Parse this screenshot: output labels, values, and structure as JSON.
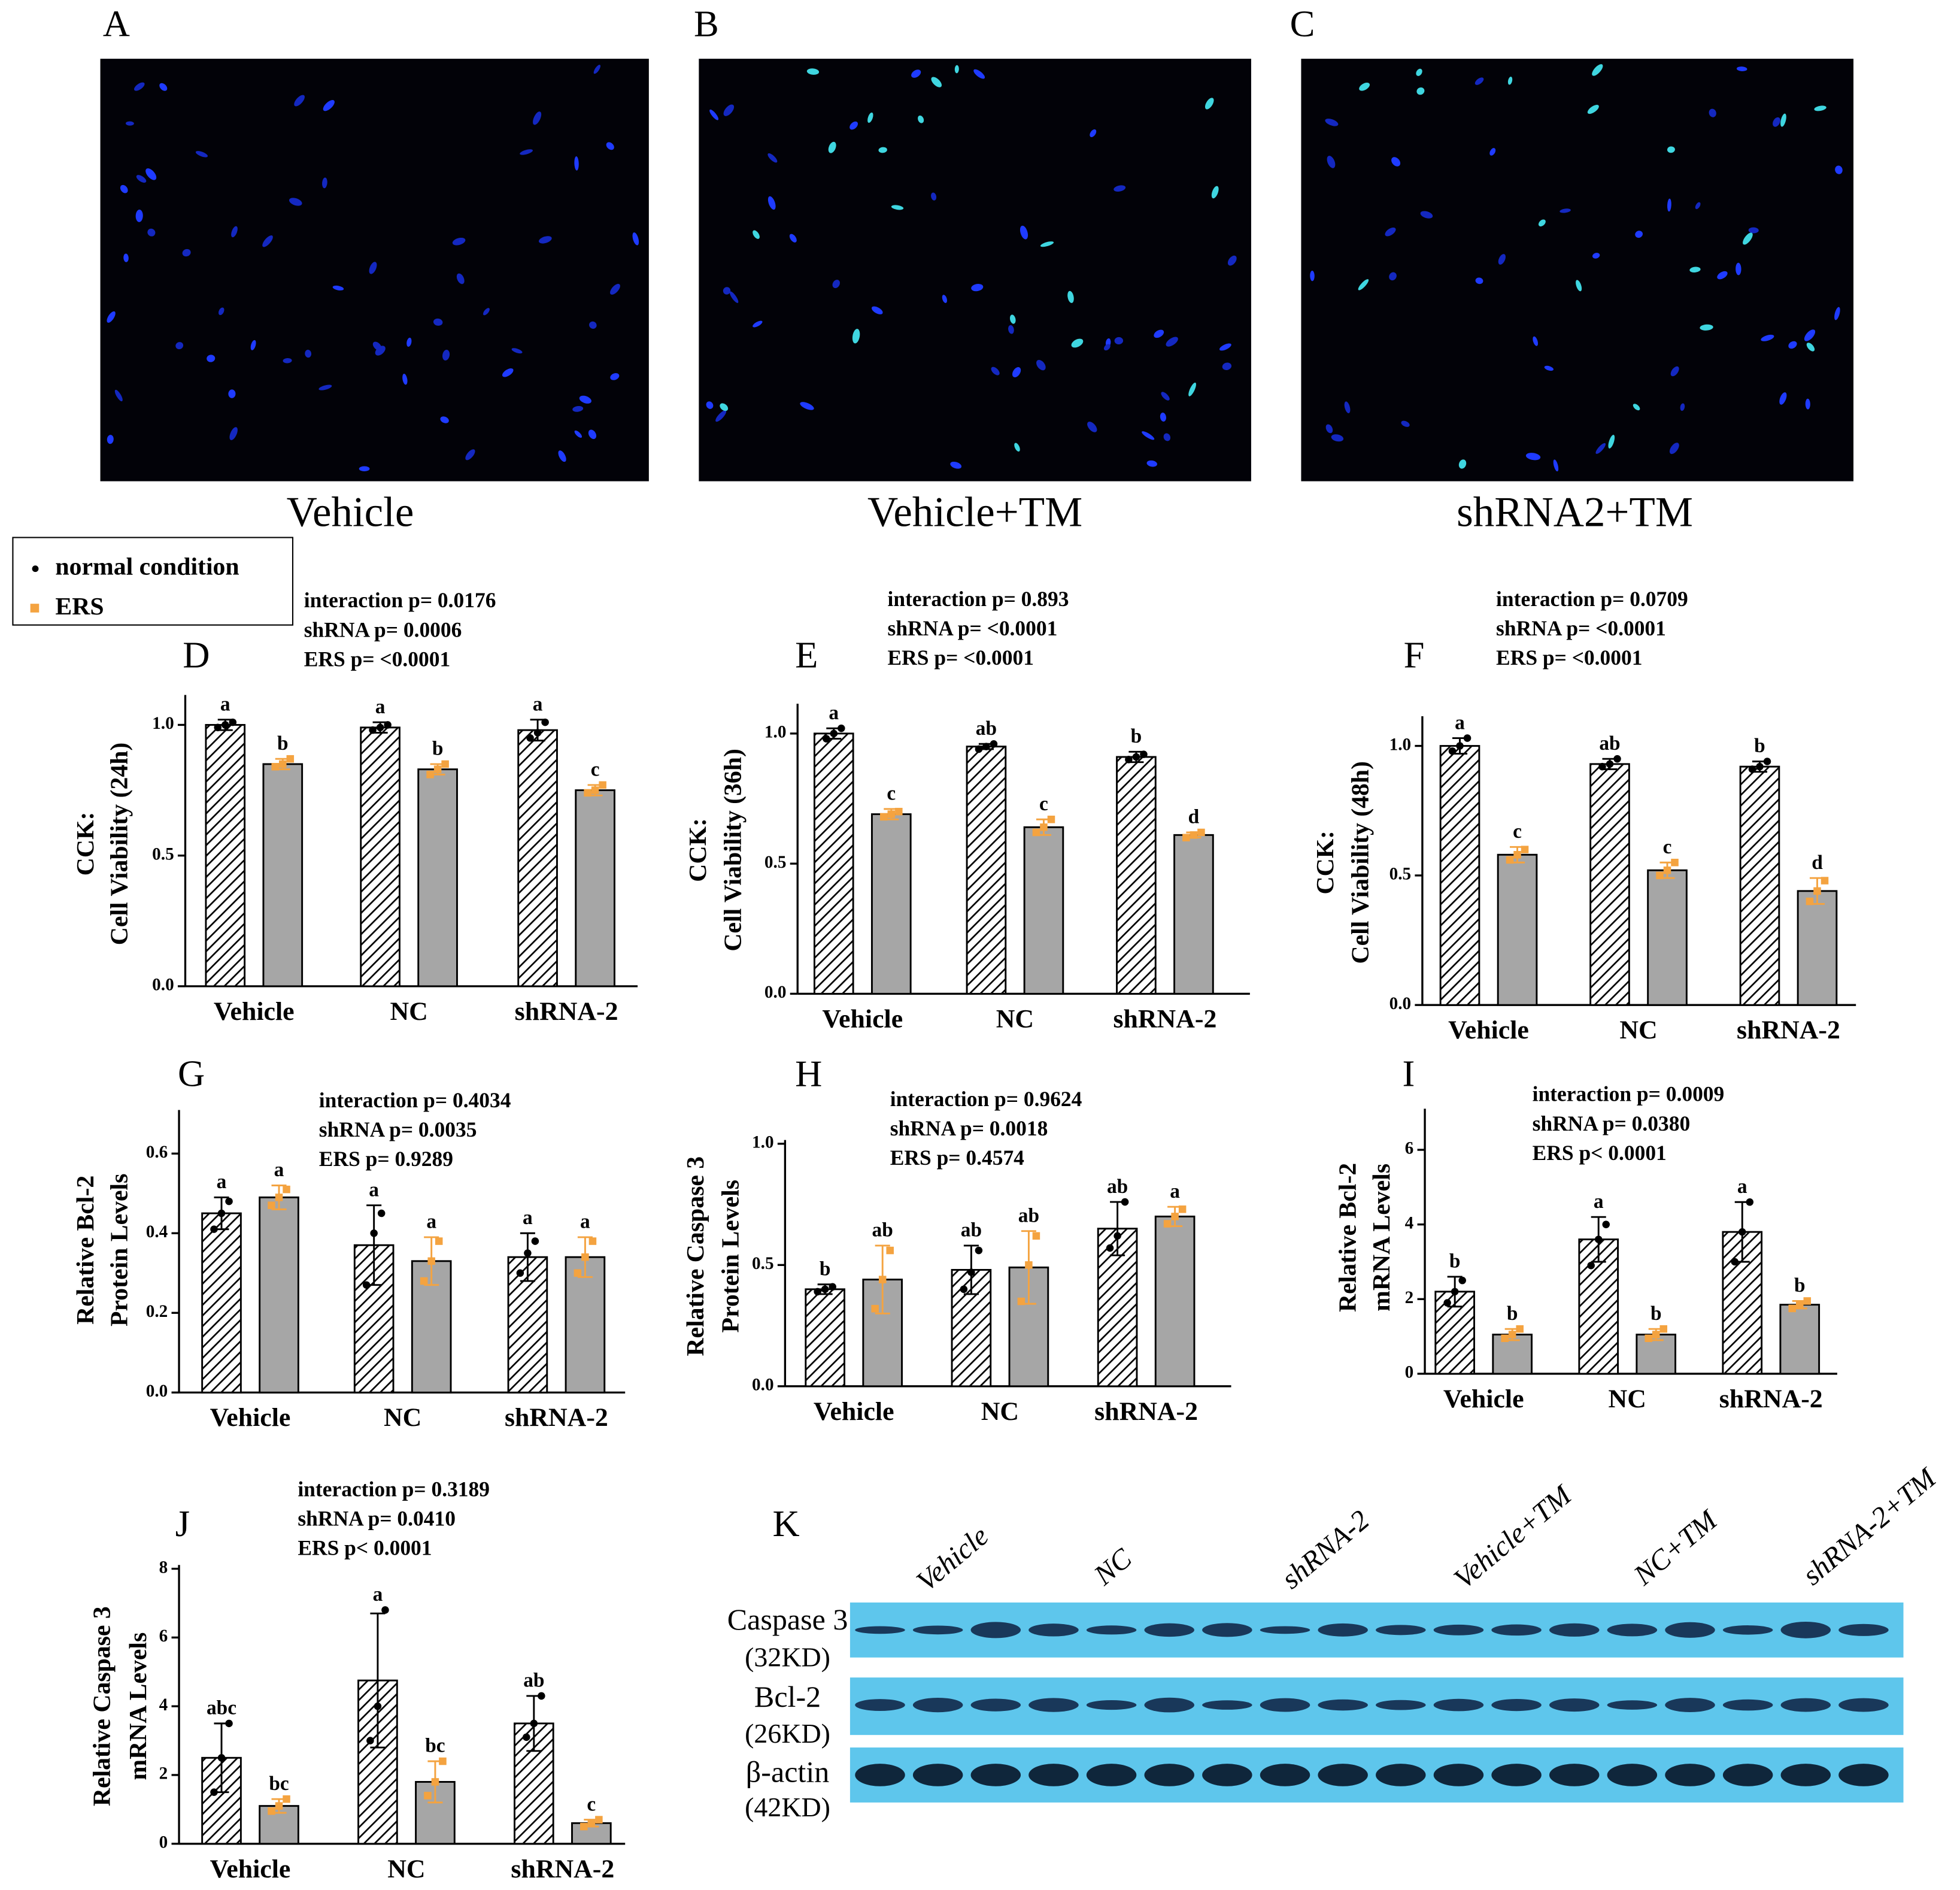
{
  "images": [
    {
      "letter": "A",
      "caption": "Vehicle"
    },
    {
      "letter": "B",
      "caption": "Vehicle+TM"
    },
    {
      "letter": "C",
      "caption": "shRNA2+TM"
    }
  ],
  "legend": {
    "items": [
      {
        "name": "normal condition",
        "color": "#000000"
      },
      {
        "name": "ERS",
        "color": "#f4a340"
      }
    ]
  },
  "chart_data": [
    {
      "type": "bar",
      "letter": "D",
      "annotations": [
        "interaction p= 0.0176",
        "shRNA p= 0.0006",
        "ERS p= <0.0001"
      ],
      "ylabel": [
        "CCK:",
        "Cell Viability (24h)"
      ],
      "categories": [
        "Vehicle",
        "NC",
        "shRNA-2"
      ],
      "ylim": [
        0,
        1.1
      ],
      "yticks": [
        {
          "value": 0,
          "label": "0.0"
        },
        {
          "value": 0.5,
          "label": "0.5"
        },
        {
          "value": 1,
          "label": "1.0"
        }
      ],
      "series": [
        {
          "values": [
            1.0,
            0.99,
            0.98
          ],
          "errors": [
            0.02,
            0.02,
            0.04
          ],
          "points": [
            [
              0.99,
              1.0,
              1.01
            ],
            [
              0.98,
              0.99,
              1.0
            ],
            [
              0.95,
              0.97,
              1.01
            ]
          ],
          "letters": [
            "a",
            "a",
            "a"
          ]
        },
        {
          "values": [
            0.85,
            0.83,
            0.75
          ],
          "errors": [
            0.02,
            0.02,
            0.02
          ],
          "points": [
            [
              0.84,
              0.85,
              0.87
            ],
            [
              0.81,
              0.83,
              0.85
            ],
            [
              0.74,
              0.75,
              0.77
            ]
          ],
          "letters": [
            "b",
            "b",
            "c"
          ]
        }
      ]
    },
    {
      "type": "bar",
      "letter": "E",
      "annotations": [
        "interaction p= 0.893",
        "shRNA p= <0.0001",
        "ERS p= <0.0001"
      ],
      "ylabel": [
        "CCK:",
        "Cell Viability (36h)"
      ],
      "categories": [
        "Vehicle",
        "NC",
        "shRNA-2"
      ],
      "ylim": [
        0,
        1.1
      ],
      "yticks": [
        {
          "value": 0,
          "label": "0.0"
        },
        {
          "value": 0.5,
          "label": "0.5"
        },
        {
          "value": 1,
          "label": "1.0"
        }
      ],
      "series": [
        {
          "values": [
            1.0,
            0.95,
            0.91
          ],
          "errors": [
            0.02,
            0.01,
            0.02
          ],
          "points": [
            [
              0.98,
              1.0,
              1.02
            ],
            [
              0.94,
              0.95,
              0.96
            ],
            [
              0.9,
              0.91,
              0.92
            ]
          ],
          "letters": [
            "a",
            "ab",
            "b"
          ]
        },
        {
          "values": [
            0.69,
            0.64,
            0.61
          ],
          "errors": [
            0.02,
            0.03,
            0.01
          ],
          "points": [
            [
              0.68,
              0.69,
              0.7
            ],
            [
              0.62,
              0.64,
              0.67
            ],
            [
              0.6,
              0.61,
              0.62
            ]
          ],
          "letters": [
            "c",
            "c",
            "d"
          ]
        }
      ]
    },
    {
      "type": "bar",
      "letter": "F",
      "annotations": [
        "interaction p= 0.0709",
        "shRNA p= <0.0001",
        "ERS p= <0.0001"
      ],
      "ylabel": [
        "CCK:",
        "Cell Viability (48h)"
      ],
      "categories": [
        "Vehicle",
        "NC",
        "shRNA-2"
      ],
      "ylim": [
        0,
        1.1
      ],
      "yticks": [
        {
          "value": 0,
          "label": "0.0"
        },
        {
          "value": 0.5,
          "label": "0.5"
        },
        {
          "value": 1,
          "label": "1.0"
        }
      ],
      "series": [
        {
          "values": [
            1.0,
            0.93,
            0.92
          ],
          "errors": [
            0.03,
            0.02,
            0.02
          ],
          "points": [
            [
              0.98,
              1.0,
              1.03
            ],
            [
              0.92,
              0.93,
              0.95
            ],
            [
              0.91,
              0.92,
              0.94
            ]
          ],
          "letters": [
            "a",
            "ab",
            "b"
          ]
        },
        {
          "values": [
            0.58,
            0.52,
            0.44
          ],
          "errors": [
            0.03,
            0.03,
            0.05
          ],
          "points": [
            [
              0.56,
              0.58,
              0.6
            ],
            [
              0.5,
              0.52,
              0.55
            ],
            [
              0.4,
              0.44,
              0.48
            ]
          ],
          "letters": [
            "c",
            "c",
            "d"
          ]
        }
      ]
    },
    {
      "type": "bar",
      "letter": "G",
      "annotations": [
        "interaction p= 0.4034",
        "shRNA p= 0.0035",
        "ERS p= 0.9289"
      ],
      "ylabel": [
        "Relative Bcl-2",
        "Protein Levels"
      ],
      "categories": [
        "Vehicle",
        "NC",
        "shRNA-2"
      ],
      "ylim": [
        0,
        0.7
      ],
      "yticks": [
        {
          "value": 0,
          "label": "0.0"
        },
        {
          "value": 0.2,
          "label": "0.2"
        },
        {
          "value": 0.4,
          "label": "0.4"
        },
        {
          "value": 0.6,
          "label": "0.6"
        }
      ],
      "series": [
        {
          "values": [
            0.45,
            0.37,
            0.34
          ],
          "errors": [
            0.04,
            0.1,
            0.06
          ],
          "points": [
            [
              0.41,
              0.45,
              0.48
            ],
            [
              0.27,
              0.4,
              0.45
            ],
            [
              0.3,
              0.35,
              0.38
            ]
          ],
          "letters": [
            "a",
            "a",
            "a"
          ]
        },
        {
          "values": [
            0.49,
            0.33,
            0.34
          ],
          "errors": [
            0.03,
            0.06,
            0.05
          ],
          "points": [
            [
              0.47,
              0.49,
              0.51
            ],
            [
              0.28,
              0.33,
              0.38
            ],
            [
              0.3,
              0.34,
              0.38
            ]
          ],
          "letters": [
            "a",
            "a",
            "a"
          ]
        }
      ]
    },
    {
      "type": "bar",
      "letter": "H",
      "annotations": [
        "interaction p= 0.9624",
        "shRNA p= 0.0018",
        "ERS p= 0.4574"
      ],
      "ylabel": [
        "Relative Caspase 3",
        "Protein Levels"
      ],
      "categories": [
        "Vehicle",
        "NC",
        "shRNA-2"
      ],
      "ylim": [
        0,
        1
      ],
      "yticks": [
        {
          "value": 0,
          "label": "0.0"
        },
        {
          "value": 0.5,
          "label": "0.5"
        },
        {
          "value": 1,
          "label": "1.0"
        }
      ],
      "series": [
        {
          "values": [
            0.4,
            0.48,
            0.65
          ],
          "errors": [
            0.02,
            0.1,
            0.11
          ],
          "points": [
            [
              0.39,
              0.4,
              0.41
            ],
            [
              0.4,
              0.47,
              0.56
            ],
            [
              0.57,
              0.62,
              0.76
            ]
          ],
          "letters": [
            "b",
            "ab",
            "ab"
          ]
        },
        {
          "values": [
            0.44,
            0.49,
            0.7
          ],
          "errors": [
            0.14,
            0.15,
            0.04
          ],
          "points": [
            [
              0.32,
              0.44,
              0.56
            ],
            [
              0.35,
              0.5,
              0.62
            ],
            [
              0.67,
              0.7,
              0.73
            ]
          ],
          "letters": [
            "ab",
            "ab",
            "a"
          ]
        }
      ]
    },
    {
      "type": "bar",
      "letter": "I",
      "annotations": [
        "interaction p= 0.0009",
        "shRNA p= 0.0380",
        "ERS p< 0.0001"
      ],
      "ylabel": [
        "Relative Bcl-2",
        "mRNA Levels"
      ],
      "categories": [
        "Vehicle",
        "NC",
        "shRNA-2"
      ],
      "ylim": [
        0,
        7
      ],
      "yticks": [
        0,
        2,
        4,
        6
      ],
      "series": [
        {
          "values": [
            2.2,
            3.6,
            3.8
          ],
          "errors": [
            0.4,
            0.6,
            0.8
          ],
          "points": [
            [
              1.9,
              2.2,
              2.5
            ],
            [
              2.9,
              3.6,
              4.0
            ],
            [
              3.0,
              3.8,
              4.6
            ]
          ],
          "letters": [
            "b",
            "a",
            "a"
          ]
        },
        {
          "values": [
            1.05,
            1.05,
            1.85
          ],
          "errors": [
            0.15,
            0.15,
            0.1
          ],
          "points": [
            [
              0.95,
              1.05,
              1.2
            ],
            [
              0.95,
              1.05,
              1.2
            ],
            [
              1.75,
              1.85,
              1.95
            ]
          ],
          "letters": [
            "b",
            "b",
            "b"
          ]
        }
      ]
    },
    {
      "type": "bar",
      "letter": "J",
      "annotations": [
        "interaction p= 0.3189",
        "shRNA p= 0.0410",
        "ERS p< 0.0001"
      ],
      "ylabel": [
        "Relative Caspase 3",
        "mRNA Levels"
      ],
      "categories": [
        "Vehicle",
        "NC",
        "shRNA-2"
      ],
      "ylim": [
        0,
        8
      ],
      "yticks": [
        0,
        2,
        4,
        6,
        8
      ],
      "series": [
        {
          "values": [
            2.5,
            4.75,
            3.5
          ],
          "errors": [
            1.0,
            1.95,
            0.8
          ],
          "points": [
            [
              1.5,
              2.5,
              3.5
            ],
            [
              3.0,
              4.0,
              6.8
            ],
            [
              3.1,
              3.5,
              4.3
            ]
          ],
          "letters": [
            "abc",
            "a",
            "ab"
          ]
        },
        {
          "values": [
            1.1,
            1.8,
            0.6
          ],
          "errors": [
            0.2,
            0.6,
            0.1
          ],
          "points": [
            [
              0.95,
              1.1,
              1.3
            ],
            [
              1.4,
              1.8,
              2.4
            ],
            [
              0.5,
              0.6,
              0.7
            ]
          ],
          "letters": [
            "bc",
            "bc",
            "c"
          ]
        }
      ]
    }
  ],
  "blot": {
    "letter": "K",
    "lanes": [
      "Vehicle",
      "NC",
      "shRNA-2",
      "Vehicle+TM",
      "NC+TM",
      "shRNA-2+TM"
    ],
    "rows": [
      {
        "protein": "Caspase 3",
        "size": "(32KD)"
      },
      {
        "protein": "Bcl-2",
        "size": "(26KD)"
      },
      {
        "protein": "β-actin",
        "size": "(42KD)"
      }
    ]
  }
}
